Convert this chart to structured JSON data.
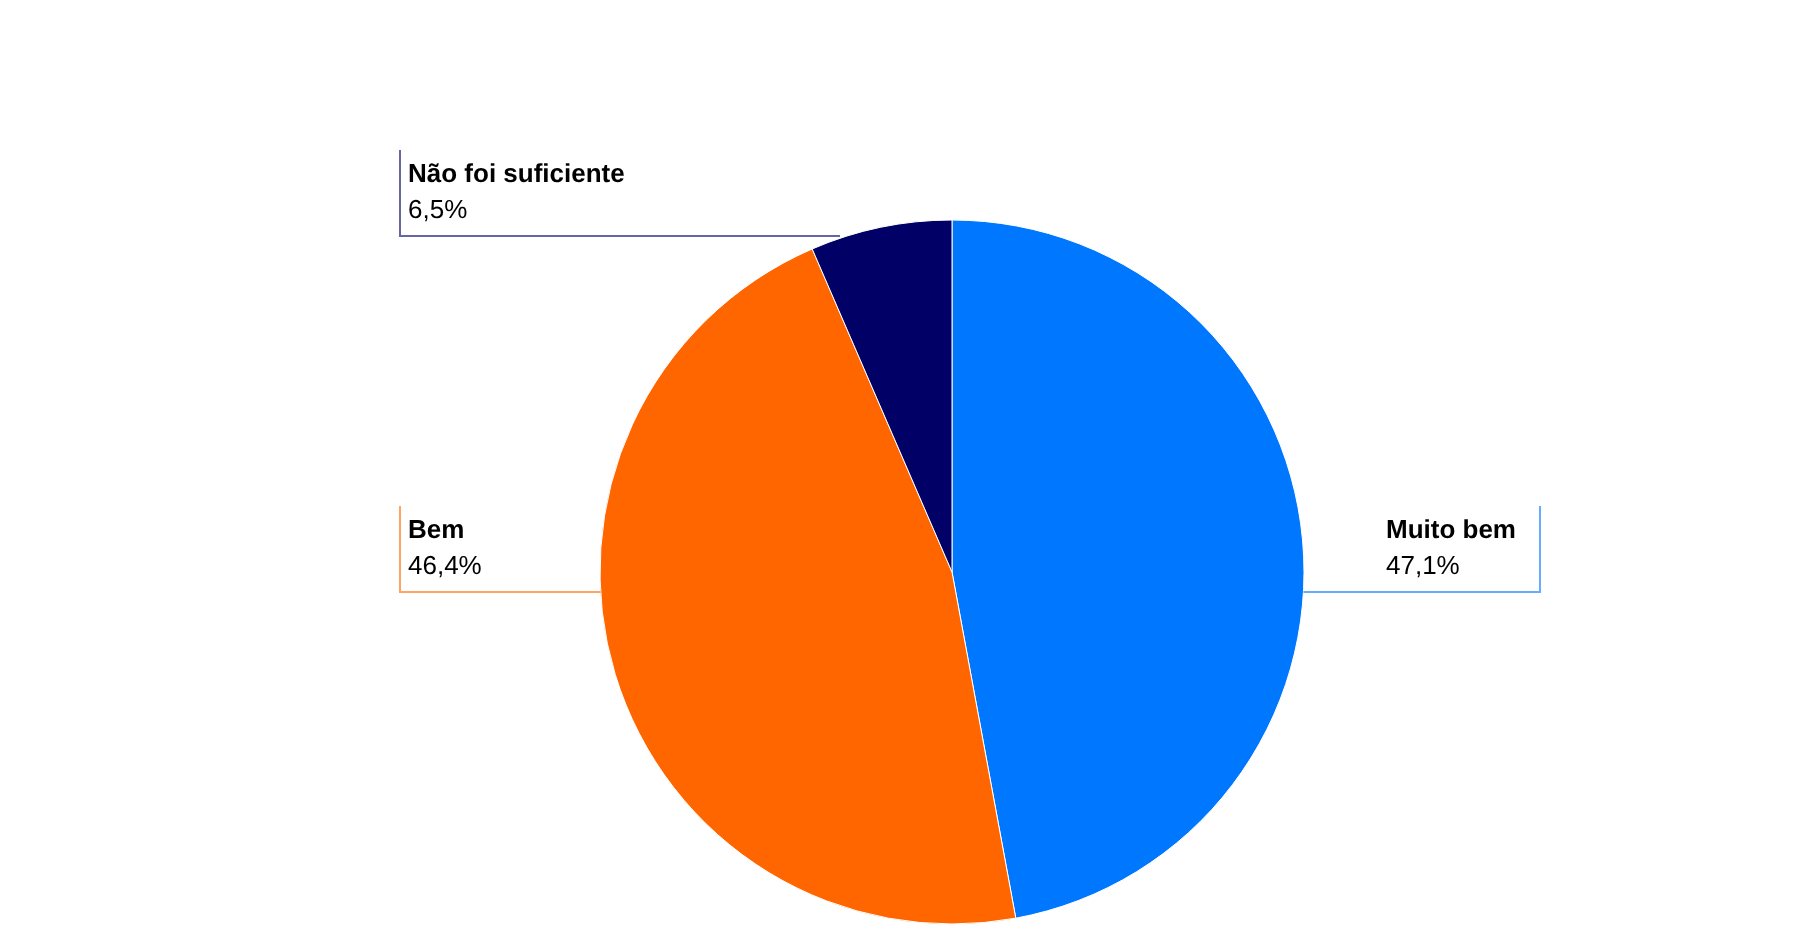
{
  "chart_data": {
    "type": "pie",
    "categories": [
      "Muito bem",
      "Bem",
      "Não foi suficiente"
    ],
    "values": [
      47.1,
      46.4,
      6.5
    ],
    "colors": [
      "#0077ff",
      "#ff6600",
      "#000066"
    ],
    "value_labels": [
      "47,1%",
      "46,4%",
      "6,5%"
    ]
  }
}
